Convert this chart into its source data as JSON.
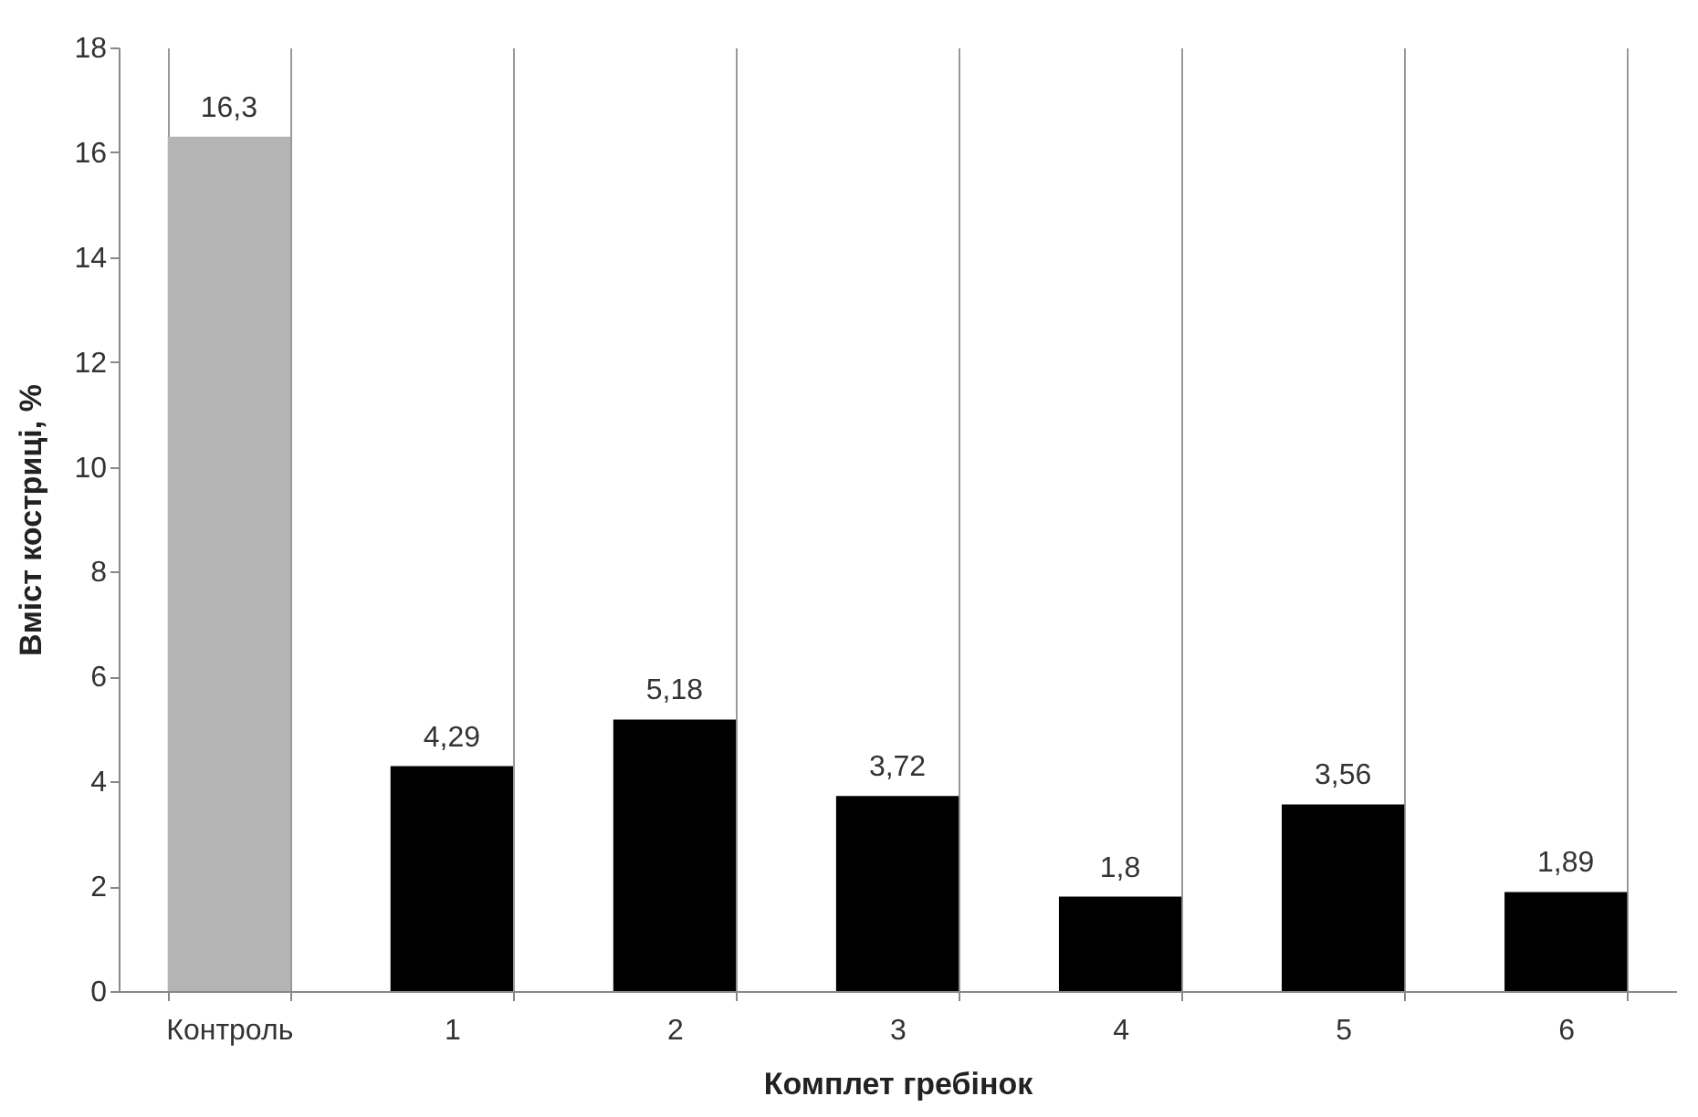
{
  "chart_data": {
    "type": "bar",
    "xlabel": "Комплет гребінок",
    "ylabel": "Вміст костриці, %",
    "categories": [
      "Контроль",
      "1",
      "2",
      "3",
      "4",
      "5",
      "6"
    ],
    "values": [
      16.3,
      4.29,
      5.18,
      3.72,
      1.8,
      3.56,
      1.89
    ],
    "colors": [
      "#b4b4b4",
      "#000000",
      "#000000",
      "#000000",
      "#000000",
      "#000000",
      "#000000"
    ],
    "value_labels": [
      "16,3",
      "4,29",
      "5,18",
      "3,72",
      "1,8",
      "3,56",
      "1,89"
    ],
    "ylim": [
      0,
      18
    ],
    "yticks": [
      0,
      2,
      4,
      6,
      8,
      10,
      12,
      14,
      16,
      18
    ],
    "grid": "x"
  }
}
